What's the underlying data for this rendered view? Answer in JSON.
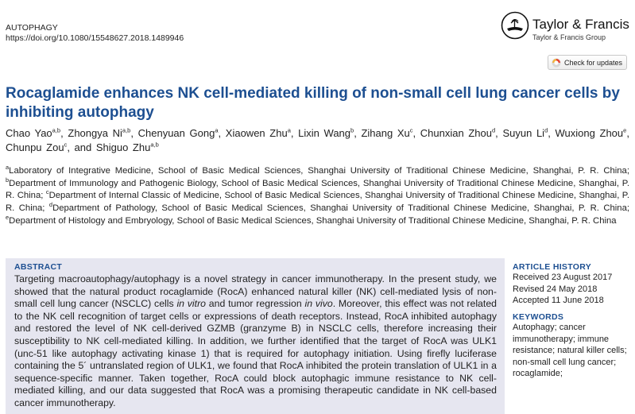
{
  "header": {
    "journal": "AUTOPHAGY",
    "doi": "https://doi.org/10.1080/15548627.2018.1489946",
    "publisher": "Taylor & Francis",
    "publisher_group": "Taylor & Francis Group",
    "check_updates": "Check for updates"
  },
  "article": {
    "title": "Rocaglamide enhances NK cell-mediated killing of non-small cell lung cancer cells by inhibiting autophagy",
    "authors": [
      {
        "name": "Chao Yao",
        "sup": "a,b"
      },
      {
        "name": "Zhongya Ni",
        "sup": "a,b"
      },
      {
        "name": "Chenyuan Gong",
        "sup": "a"
      },
      {
        "name": "Xiaowen Zhu",
        "sup": "a"
      },
      {
        "name": "Lixin Wang",
        "sup": "b"
      },
      {
        "name": "Zihang Xu",
        "sup": "c"
      },
      {
        "name": "Chunxian Zhou",
        "sup": "d"
      },
      {
        "name": "Suyun Li",
        "sup": "d"
      },
      {
        "name": "Wuxiong Zhou",
        "sup": "e"
      },
      {
        "name": "Chunpu Zou",
        "sup": "c"
      },
      {
        "name": "Shiguo Zhu",
        "sup": "a,b"
      }
    ],
    "author_sep": ", ",
    "author_last_sep": ", and ",
    "affiliations": [
      {
        "sup": "a",
        "text": "Laboratory of Integrative Medicine, School of Basic Medical Sciences, Shanghai University of Traditional Chinese Medicine, Shanghai, P. R. China"
      },
      {
        "sup": "b",
        "text": "Department of Immunology and Pathogenic Biology, School of Basic Medical Sciences, Shanghai University of Traditional Chinese Medicine, Shanghai, P. R. China"
      },
      {
        "sup": "c",
        "text": "Department of Internal Classic of Medicine, School of Basic Medical Sciences, Shanghai University of Traditional Chinese Medicine, Shanghai, P. R. China"
      },
      {
        "sup": "d",
        "text": "Department of Pathology, School of Basic Medical Sciences, Shanghai University of Traditional Chinese Medicine, Shanghai, P. R. China"
      },
      {
        "sup": "e",
        "text": "Department of Histology and Embryology, School of Basic Medical Sciences, Shanghai University of Traditional Chinese Medicine, Shanghai, P. R. China"
      }
    ],
    "affil_sep": "; "
  },
  "abstract": {
    "heading": "ABSTRACT",
    "segments": [
      {
        "t": "Targeting macroautophagy/autophagy is a novel strategy in cancer immunotherapy. In the present study, we showed that the natural product rocaglamide (RocA) enhanced natural killer (NK) cell-mediated lysis of non-small cell lung cancer (NSCLC) cells "
      },
      {
        "t": "in vitro",
        "i": true
      },
      {
        "t": " and tumor regression "
      },
      {
        "t": "in vivo",
        "i": true
      },
      {
        "t": ". Moreover, this effect was not related to the NK cell recognition of target cells or expressions of death receptors. Instead, RocA inhibited autophagy and restored the level of NK cell-derived GZMB (granzyme B) in NSCLC cells, therefore increasing their susceptibility to NK cell-mediated killing. In addition, we further identified that the target of RocA was ULK1 (unc-51 like autophagy activating kinase 1) that is required for autophagy initiation. Using firefly luciferase containing the 5´ untranslated region of ULK1, we found that RocA inhibited the protein translation of ULK1 in a sequence-specific manner. Taken together, RocA could block autophagic immune resistance to NK cell-mediated killing, and our data suggested that RocA was a promising therapeutic candidate in NK cell-based cancer immunotherapy."
      }
    ]
  },
  "history": {
    "heading": "ARTICLE HISTORY",
    "received": "Received 23 August 2017",
    "revised": "Revised 24 May 2018",
    "accepted": "Accepted 11 June 2018"
  },
  "keywords": {
    "heading": "KEYWORDS",
    "text": "Autophagy; cancer immunotherapy; immune resistance; natural killer cells; non-small cell lung cancer; rocaglamide;"
  }
}
